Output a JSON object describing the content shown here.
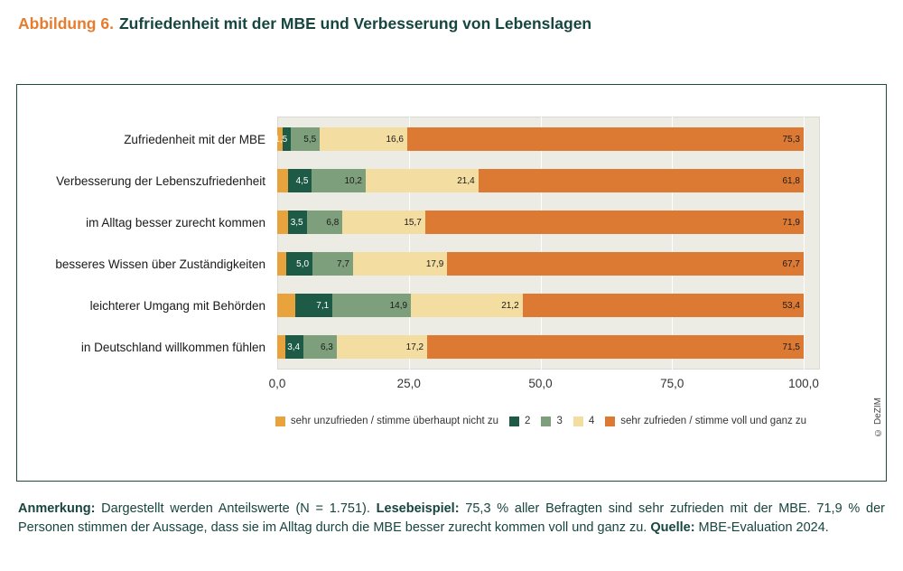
{
  "title": {
    "prefix": "Abbildung 6.",
    "text": "Zufriedenheit mit der MBE und Verbesserung von Lebenslagen"
  },
  "copyright": "© DeZIM",
  "chart_data": {
    "type": "bar",
    "orientation": "horizontal",
    "stacked": true,
    "xlim": [
      0,
      100
    ],
    "grid": true,
    "legend_position": "bottom",
    "plot_background": "#ecebe4",
    "x_ticks": [
      {
        "value": 0,
        "label": "0,0"
      },
      {
        "value": 25,
        "label": "25,0"
      },
      {
        "value": 50,
        "label": "50,0"
      },
      {
        "value": 75,
        "label": "75,0"
      },
      {
        "value": 100,
        "label": "100,0"
      }
    ],
    "categories": [
      "Zufriedenheit mit der MBE",
      "Verbesserung der Lebenszufriedenheit",
      "im Alltag besser zurecht kommen",
      "besseres Wissen über Zuständigkeiten",
      "leichterer Umgang mit Behörden",
      "in Deutschland willkommen fühlen"
    ],
    "series": [
      {
        "name": "sehr unzufrieden / stimme überhaupt nicht zu",
        "color": "#e8a33d",
        "label_style": "dark",
        "values": [
          1.1,
          2.1,
          2.1,
          1.7,
          3.4,
          1.6
        ],
        "labels": [
          "",
          "",
          "",
          "",
          "",
          ""
        ]
      },
      {
        "name": "2",
        "color": "#1e5b46",
        "label_style": "light",
        "values": [
          1.5,
          4.5,
          3.5,
          5.0,
          7.1,
          3.4
        ],
        "labels": [
          "1,5",
          "4,5",
          "3,5",
          "5,0",
          "7,1",
          "3,4"
        ]
      },
      {
        "name": "3",
        "color": "#7e9f7b",
        "label_style": "dark",
        "values": [
          5.5,
          10.2,
          6.8,
          7.7,
          14.9,
          6.3
        ],
        "labels": [
          "5,5",
          "10,2",
          "6,8",
          "7,7",
          "14,9",
          "6,3"
        ]
      },
      {
        "name": "4",
        "color": "#f4dda0",
        "label_style": "dark",
        "values": [
          16.6,
          21.4,
          15.7,
          17.9,
          21.2,
          17.2
        ],
        "labels": [
          "16,6",
          "21,4",
          "15,7",
          "17,9",
          "21,2",
          "17,2"
        ]
      },
      {
        "name": "sehr zufrieden / stimme voll und ganz zu",
        "color": "#dc7a33",
        "label_style": "dark",
        "values": [
          75.3,
          61.8,
          71.9,
          67.7,
          53.4,
          71.5
        ],
        "labels": [
          "75,3",
          "61,8",
          "71,9",
          "67,7",
          "53,4",
          "71,5"
        ]
      }
    ]
  },
  "note": {
    "part1_bold": "Anmerkung:",
    "part1_text": " Dargestellt werden Anteilswerte (N = 1.751). ",
    "part2_bold": "Lesebeispiel:",
    "part2_text": " 75,3 % aller Befragten sind sehr zufrieden mit der MBE. 71,9 % der Personen stimmen der Aussage, dass sie im Alltag durch die MBE besser zurecht kommen voll und ganz zu. ",
    "part3_bold": "Quelle:",
    "part3_text": " MBE-Evaluation 2024."
  }
}
